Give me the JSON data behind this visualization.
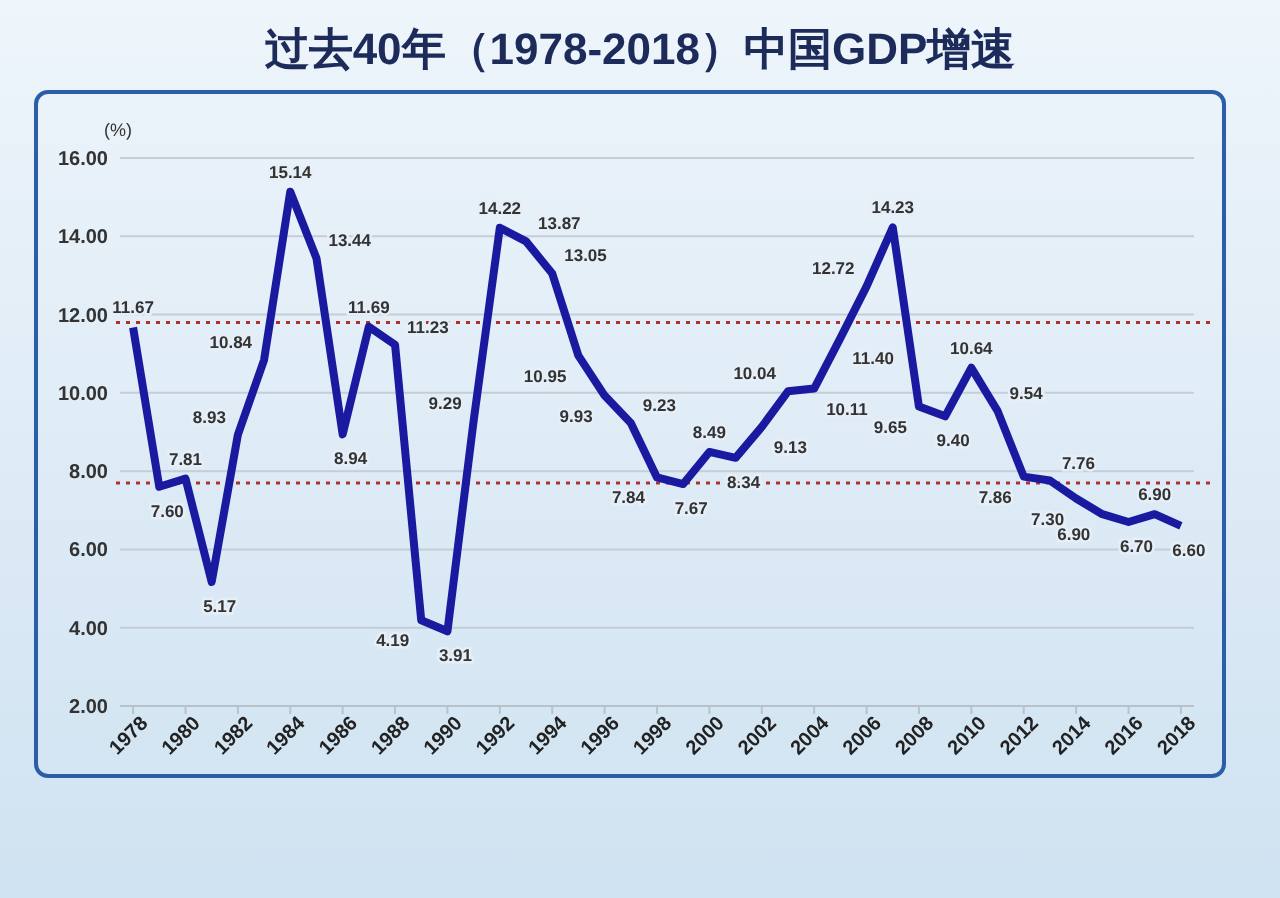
{
  "chart_data": {
    "type": "line",
    "title": "过去40年（1978-2018）中国GDP增速",
    "ylabel": "(%)",
    "x": [
      1978,
      1979,
      1980,
      1981,
      1982,
      1983,
      1984,
      1985,
      1986,
      1987,
      1988,
      1989,
      1990,
      1991,
      1992,
      1993,
      1994,
      1995,
      1996,
      1997,
      1998,
      1999,
      2000,
      2001,
      2002,
      2003,
      2004,
      2005,
      2006,
      2007,
      2008,
      2009,
      2010,
      2011,
      2012,
      2013,
      2014,
      2015,
      2016,
      2017,
      2018
    ],
    "series": [
      {
        "color": "#1a1aa0",
        "values": [
          11.67,
          7.6,
          7.81,
          5.17,
          8.93,
          10.84,
          15.14,
          13.44,
          8.94,
          11.69,
          11.23,
          4.19,
          3.91,
          9.29,
          14.22,
          13.87,
          13.05,
          10.95,
          9.93,
          9.23,
          7.84,
          7.67,
          8.49,
          8.34,
          9.13,
          10.04,
          10.11,
          11.4,
          12.72,
          14.23,
          9.65,
          9.4,
          10.64,
          9.54,
          7.86,
          7.76,
          7.3,
          6.9,
          6.7,
          6.9,
          6.6
        ],
        "value_labels": [
          "11.67",
          "7.60",
          "7.81",
          "5.17",
          "8.93",
          "10.84",
          "15.14",
          "13.44",
          "8.94",
          "11.69",
          "11.23",
          "4.19",
          "3.91",
          "9.29",
          "14.22",
          "13.87",
          "13.05",
          "10.95",
          "9.93",
          "9.23",
          "7.84",
          "7.67",
          "8.49",
          "8.34",
          "9.13",
          "10.04",
          "10.11",
          "11.40",
          "12.72",
          "14.23",
          "9.65",
          "9.40",
          "10.64",
          "9.54",
          "7.86",
          "7.76",
          "7.30",
          "6.90",
          "6.70",
          "6.90",
          "6.60"
        ]
      }
    ],
    "xlim": [
      1977.5,
      2018.5
    ],
    "ylim": [
      2,
      16
    ],
    "xticks": [
      1978,
      1980,
      1982,
      1984,
      1986,
      1988,
      1990,
      1992,
      1994,
      1996,
      1998,
      2000,
      2002,
      2004,
      2006,
      2008,
      2010,
      2012,
      2014,
      2016,
      2018
    ],
    "yticks": [
      {
        "value": 2,
        "label": "2.00"
      },
      {
        "value": 4,
        "label": "4.00"
      },
      {
        "value": 6,
        "label": "6.00"
      },
      {
        "value": 8,
        "label": "8.00"
      },
      {
        "value": 10,
        "label": "10.00"
      },
      {
        "value": 12,
        "label": "12.00"
      },
      {
        "value": 14,
        "label": "14.00"
      },
      {
        "value": 16,
        "label": "16.00"
      }
    ],
    "grid": "y",
    "marker": "none",
    "line_style": "solid",
    "ref_lines": [
      {
        "axis": "y",
        "value": 11.8,
        "color": "#b03030",
        "line_style": "dotted"
      },
      {
        "axis": "y",
        "value": 7.7,
        "color": "#b03030",
        "line_style": "dotted"
      }
    ]
  }
}
